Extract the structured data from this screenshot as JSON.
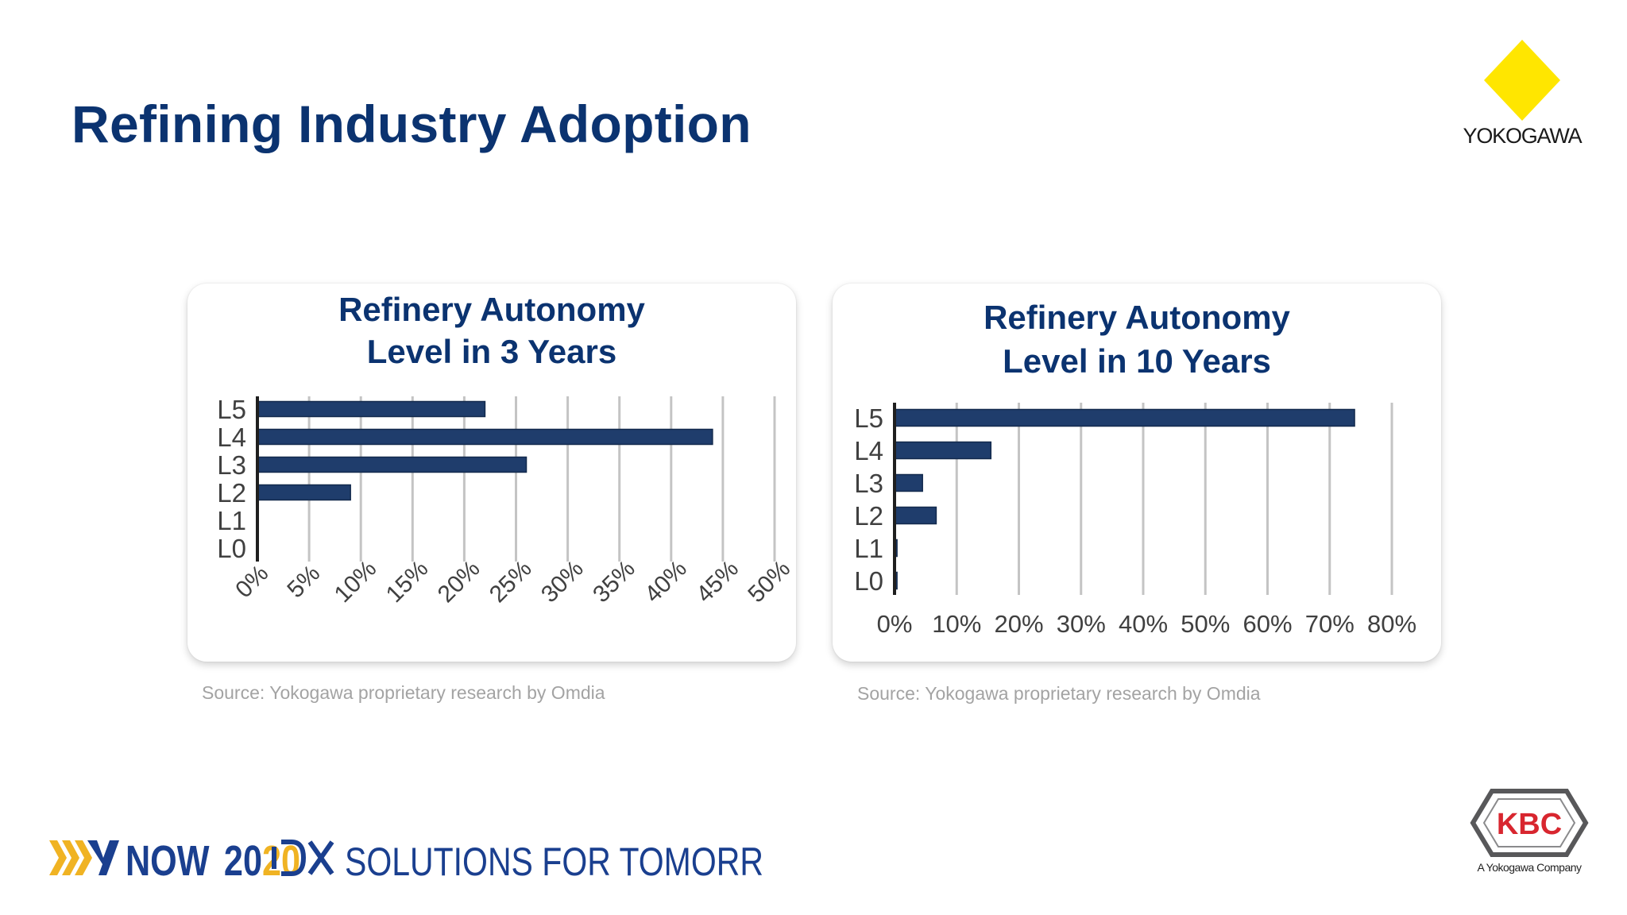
{
  "slide": {
    "title": "Refining Industry Adoption"
  },
  "brand": {
    "name": "YOKOGAWA",
    "diamond_color": "#ffe600",
    "title_color": "#0b3370",
    "bar_color": "#1f3d6c"
  },
  "chart_data": [
    {
      "type": "bar",
      "orientation": "horizontal",
      "title": "Refinery Autonomy Level in 3 Years",
      "title_lines": [
        "Refinery Autonomy",
        "Level in 3 Years"
      ],
      "categories": [
        "L5",
        "L4",
        "L3",
        "L2",
        "L1",
        "L0"
      ],
      "values": [
        22,
        44,
        26,
        9,
        0,
        0
      ],
      "unit": "%",
      "xlim": [
        0,
        50
      ],
      "xticks": [
        0,
        5,
        10,
        15,
        20,
        25,
        30,
        35,
        40,
        45,
        50
      ],
      "xtick_labels": [
        "0%",
        "5%",
        "10%",
        "15%",
        "20%",
        "25%",
        "30%",
        "35%",
        "40%",
        "45%",
        "50%"
      ],
      "xtick_rotation": "diagonal",
      "grid": "vertical",
      "legend": "none",
      "source": "Source: Yokogawa proprietary research by Omdia"
    },
    {
      "type": "bar",
      "orientation": "horizontal",
      "title": "Refinery Autonomy Level in 10 Years",
      "title_lines": [
        "Refinery Autonomy",
        "Level in 10 Years"
      ],
      "categories": [
        "L5",
        "L4",
        "L3",
        "L2",
        "L1",
        "L0"
      ],
      "values": [
        74,
        15.5,
        4.5,
        6.7,
        0.4,
        0.4
      ],
      "unit": "%",
      "xlim": [
        0,
        80
      ],
      "xticks": [
        0,
        10,
        20,
        30,
        40,
        50,
        60,
        70,
        80
      ],
      "xtick_labels": [
        "0%",
        "10%",
        "20%",
        "30%",
        "40%",
        "50%",
        "60%",
        "70%",
        "80%"
      ],
      "xtick_rotation": "none",
      "grid": "vertical",
      "legend": "none",
      "source": "Source: Yokogawa proprietary research by Omdia"
    }
  ],
  "footer": {
    "event_year_prefix": "NOW",
    "event_year_first": "20",
    "event_year_second": "20",
    "solutions": "SOLUTIONS FOR TOMORROW",
    "banner_colors": {
      "chevrons": "#f0b323",
      "text": "#1a3f8f",
      "year_first": "#1a3f8f",
      "year_second": "#f0b323"
    },
    "kbc_name": "KBC",
    "kbc_tagline": "A Yokogawa Company",
    "kbc_color": "#d8262f"
  }
}
